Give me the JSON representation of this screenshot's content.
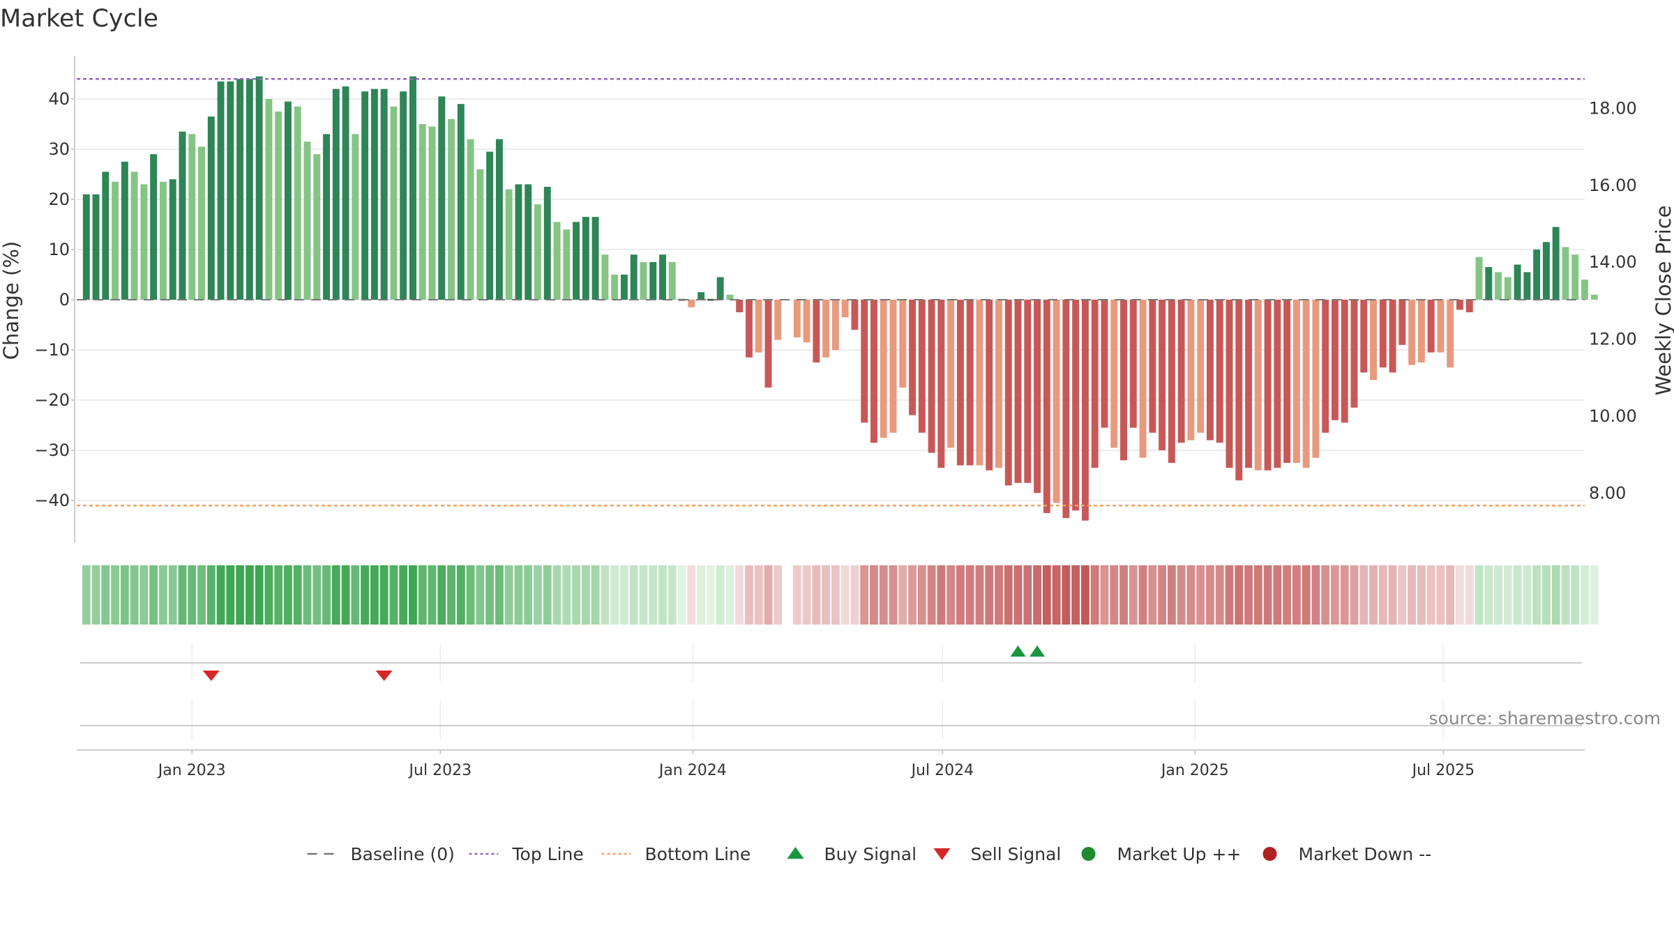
{
  "chart_data": {
    "type": "bar",
    "title": "Market Cycle",
    "ylabel_left": "Change (%)",
    "ylabel_right": "Weekly Close Price",
    "ylim_left": [
      -48,
      48
    ],
    "ylim_right": [
      6.7,
      19.35
    ],
    "yticks_left": [
      "40",
      "30",
      "20",
      "10",
      "0",
      "−10",
      "−20",
      "−30",
      "−40"
    ],
    "yticks_left_values": [
      40,
      30,
      20,
      10,
      0,
      -10,
      -20,
      -30,
      -40
    ],
    "yticks_right": [
      "18.00",
      "16.00",
      "14.00",
      "12.00",
      "10.00",
      "8.00"
    ],
    "yticks_right_values": [
      18,
      16,
      14,
      12,
      10,
      8
    ],
    "top_line": 44,
    "bottom_line": -41,
    "x_date_range": [
      "2022-10-09",
      "2025-10-12"
    ],
    "x_ticks": [
      {
        "label": "Jan 2023",
        "date": "2023-01-01"
      },
      {
        "label": "Jul 2023",
        "date": "2023-07-01"
      },
      {
        "label": "Jan 2024",
        "date": "2024-01-01"
      },
      {
        "label": "Jul 2024",
        "date": "2024-07-01"
      },
      {
        "label": "Jan 2025",
        "date": "2025-01-01"
      },
      {
        "label": "Jul 2025",
        "date": "2025-07-01"
      }
    ],
    "first_week": "2022-10-16",
    "week_values": [
      21,
      21,
      25.5,
      23.5,
      27.5,
      25.5,
      23,
      29,
      23.5,
      24,
      33.5,
      33,
      30.5,
      36.5,
      43.5,
      43.5,
      44,
      44,
      44.5,
      40,
      37.5,
      39.5,
      38.5,
      31.5,
      29,
      33,
      42,
      42.5,
      33,
      41.5,
      42,
      42,
      38.5,
      41.5,
      44.5,
      35,
      34.5,
      40.5,
      36,
      39,
      32,
      26,
      29.5,
      32,
      22,
      23,
      23,
      19,
      22.5,
      15.5,
      14,
      15.5,
      16.5,
      16.5,
      9,
      5,
      5,
      9,
      7.5,
      7.5,
      9,
      7.5,
      0,
      -1.5,
      1.5,
      0,
      4.5,
      1,
      -2.5,
      -11.5,
      -10.5,
      -17.5,
      -8,
      0,
      -7.5,
      -8.5,
      -12.5,
      -11.5,
      -10,
      -3.5,
      -6,
      -24.5,
      -28.5,
      -27.5,
      -26.5,
      -17.5,
      -23,
      -26.5,
      -30.5,
      -33.5,
      -29.5,
      -33,
      -33,
      -33,
      -34,
      -33.5,
      -37,
      -36.5,
      -36.5,
      -38.5,
      -42.5,
      -40.5,
      -43.5,
      -42,
      -44,
      -33.5,
      -25.5,
      -29.5,
      -32,
      -25.5,
      -31.5,
      -26.5,
      -30,
      -32.5,
      -28.5,
      -28,
      -26.5,
      -28,
      -28.5,
      -33.5,
      -36,
      -33.5,
      -34,
      -34,
      -33.5,
      -32.5,
      -32.5,
      -33.5,
      -31.5,
      -26.5,
      -24,
      -24.5,
      -21.5,
      -14.5,
      -16,
      -13.5,
      -14.5,
      -9,
      -13,
      -12.5,
      -10.5,
      -10.5,
      -13.5,
      -2,
      -2.5,
      8.5,
      6.5,
      5.5,
      4.5,
      7,
      5.5,
      10,
      11.5,
      14.5,
      10.5,
      9,
      4,
      1
    ],
    "dark_bar_weeks": [
      0,
      1,
      2,
      4,
      7,
      9,
      10,
      13,
      14,
      15,
      16,
      17,
      18,
      21,
      25,
      26,
      27,
      29,
      30,
      31,
      33,
      34,
      37,
      39,
      42,
      43,
      45,
      46,
      48,
      51,
      52,
      53,
      56,
      57,
      59,
      60,
      64,
      66,
      68,
      69,
      71,
      76,
      80,
      81,
      82,
      86,
      87,
      88,
      89,
      91,
      92,
      94,
      96,
      97,
      98,
      99,
      100,
      102,
      103,
      104,
      105,
      106,
      108,
      109,
      111,
      112,
      113,
      114,
      117,
      118,
      119,
      120,
      121,
      123,
      124,
      125,
      129,
      130,
      131,
      132,
      133,
      135,
      136,
      137,
      140,
      143,
      144,
      146,
      149,
      150,
      151,
      152,
      153
    ],
    "missing_weeks": [
      73
    ],
    "heat_strip_weeks": [
      0,
      1,
      2,
      3,
      4,
      5,
      6,
      7,
      8,
      9,
      10,
      11,
      12,
      13,
      14,
      15,
      16,
      17,
      18,
      19,
      20,
      21,
      22,
      23,
      24,
      25,
      26,
      27,
      28,
      29,
      30,
      31,
      32,
      33,
      34,
      35,
      36,
      37,
      38,
      39,
      40,
      41,
      42,
      43,
      44,
      45,
      46,
      47,
      48,
      49,
      50,
      51,
      52,
      53,
      54,
      55,
      56,
      57,
      58,
      59,
      60,
      61,
      62,
      63,
      64,
      65,
      66,
      67,
      68,
      69,
      70,
      71,
      72,
      74,
      75,
      76,
      77,
      78,
      79,
      80,
      81,
      82,
      83,
      84,
      85,
      86,
      87,
      88,
      89,
      90,
      91,
      92,
      93,
      94,
      95,
      96,
      97,
      98,
      99,
      100,
      101,
      102,
      103,
      104,
      105,
      106,
      107,
      108,
      109,
      110,
      111,
      112,
      113,
      114,
      115,
      116,
      117,
      118,
      119,
      120,
      121,
      122,
      123,
      124,
      125,
      126,
      127,
      128,
      129,
      130,
      131,
      132,
      133,
      134,
      135,
      136,
      137,
      138,
      139,
      140,
      141,
      142,
      143,
      144,
      145,
      146,
      147,
      148,
      149,
      150,
      151,
      152,
      153,
      154,
      155,
      156,
      157
    ],
    "buy_signals": [
      "2024-08-25",
      "2024-09-08"
    ],
    "sell_signals": [
      "2023-01-15",
      "2023-05-21"
    ],
    "legend": [
      {
        "label": "Baseline (0)",
        "marker": "dash",
        "color": "#777777"
      },
      {
        "label": "Top Line",
        "marker": "dotted",
        "color": "#9467bd"
      },
      {
        "label": "Bottom Line",
        "marker": "dotted",
        "color": "#f4a261"
      },
      {
        "label": "Buy Signal",
        "marker": "triangle-up",
        "color": "#1a9641"
      },
      {
        "label": "Sell Signal",
        "marker": "triangle-down",
        "color": "#d62728"
      },
      {
        "label": "Market Up ++",
        "marker": "circle",
        "color": "#1e8c2e"
      },
      {
        "label": "Market Down --",
        "marker": "circle",
        "color": "#b22222"
      }
    ],
    "legend_placement": "bottom-center",
    "grid": true,
    "colors": {
      "up_dark": "#2e8556",
      "up_light": "#86c486",
      "down_dark": "#c85858",
      "down_light": "#e89a7e"
    }
  },
  "watermark": "source: sharemaestro.com"
}
